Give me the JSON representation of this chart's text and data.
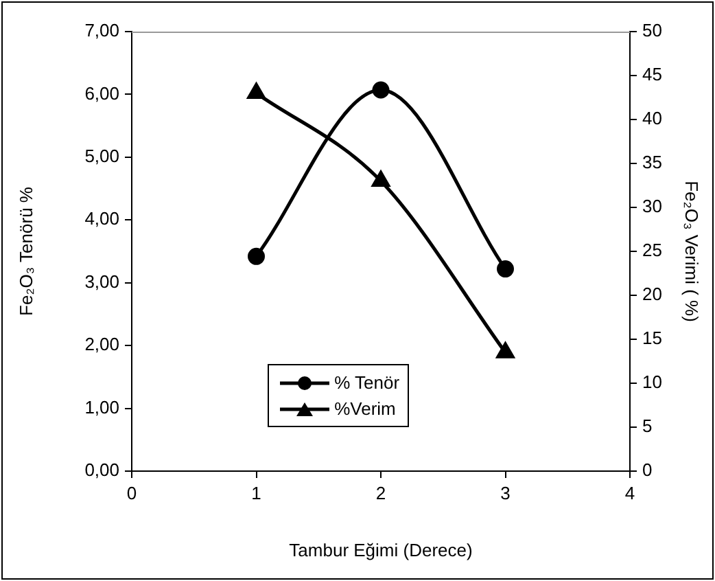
{
  "chart_data": {
    "type": "line",
    "xlabel": "Tambur Eğimi (Derece)",
    "ylabel": "Fe₂O₃ Tenörü %",
    "y2label": "Fe₂O₃ Verimi ( %)",
    "x": [
      1,
      2,
      3
    ],
    "series": [
      {
        "name": "% Tenör",
        "color": "#000000",
        "values": [
          3.42,
          6.07,
          3.22
        ],
        "marker": "circle"
      },
      {
        "name": "%Verim",
        "color": "#000000",
        "values": [
          43,
          33,
          13.5
        ],
        "marker": "triangle",
        "axis": "y2"
      }
    ],
    "xlim": [
      0,
      4
    ],
    "xticks": [
      0,
      1,
      2,
      3,
      4
    ],
    "ylim": [
      0,
      7
    ],
    "yticks": [
      {
        "value": 0,
        "label": "0,00"
      },
      {
        "value": 1,
        "label": "1,00"
      },
      {
        "value": 2,
        "label": "2,00"
      },
      {
        "value": 3,
        "label": "3,00"
      },
      {
        "value": 4,
        "label": "4,00"
      },
      {
        "value": 5,
        "label": "5,00"
      },
      {
        "value": 6,
        "label": "6,00"
      },
      {
        "value": 7,
        "label": "7,00"
      }
    ],
    "y2lim": [
      0,
      50
    ],
    "y2ticks": [
      0,
      5,
      10,
      15,
      20,
      25,
      30,
      35,
      40,
      45,
      50
    ],
    "grid": false,
    "legend": "bottom",
    "line_style": "solid"
  }
}
